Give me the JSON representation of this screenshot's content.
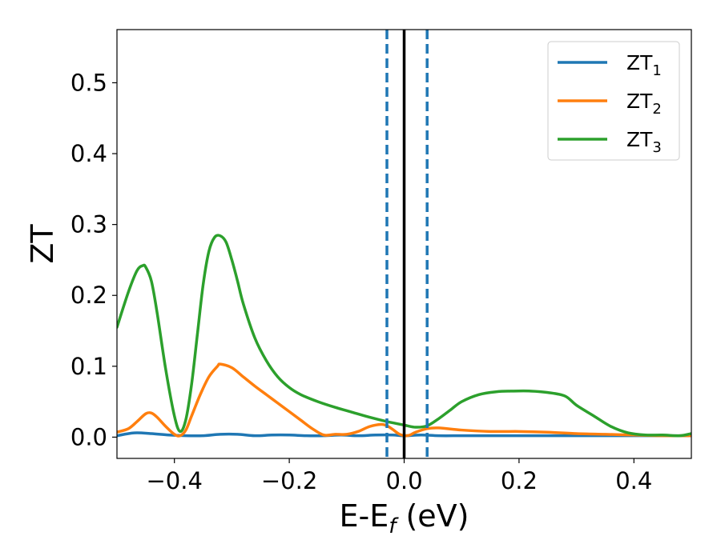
{
  "chart_data": {
    "type": "line",
    "xlabel": {
      "base": "E-E",
      "sub": "f",
      "suffix": " (eV)"
    },
    "ylabel": "ZT",
    "xlim": [
      -0.5,
      0.5
    ],
    "ylim": [
      -0.03,
      0.575
    ],
    "xticks": [
      -0.4,
      -0.2,
      0.0,
      0.2,
      0.4
    ],
    "xtick_labels": [
      "−0.4",
      "−0.2",
      "0.0",
      "0.2",
      "0.4"
    ],
    "yticks": [
      0.0,
      0.1,
      0.2,
      0.3,
      0.4,
      0.5
    ],
    "ytick_labels": [
      "0.0",
      "0.1",
      "0.2",
      "0.3",
      "0.4",
      "0.5"
    ],
    "grid": false,
    "legend_position": "top-right",
    "vlines": [
      {
        "x": 0.0,
        "style": "solid",
        "color": "#000000"
      },
      {
        "x": -0.03,
        "style": "dashed",
        "color": "#1f77b4"
      },
      {
        "x": 0.04,
        "style": "dashed",
        "color": "#1f77b4"
      }
    ],
    "series": [
      {
        "name": "ZT",
        "sub": "1",
        "color": "#1f77b4",
        "x": [
          -0.5,
          -0.47,
          -0.44,
          -0.41,
          -0.38,
          -0.35,
          -0.32,
          -0.29,
          -0.26,
          -0.23,
          -0.2,
          -0.17,
          -0.14,
          -0.11,
          -0.08,
          -0.05,
          -0.02,
          0.0,
          0.03,
          0.06,
          0.1,
          0.15,
          0.2,
          0.3,
          0.4,
          0.5
        ],
        "y": [
          0.002,
          0.006,
          0.005,
          0.003,
          0.002,
          0.002,
          0.004,
          0.004,
          0.002,
          0.003,
          0.003,
          0.002,
          0.002,
          0.003,
          0.002,
          0.003,
          0.003,
          0.002,
          0.003,
          0.002,
          0.002,
          0.002,
          0.002,
          0.002,
          0.002,
          0.002
        ]
      },
      {
        "name": "ZT",
        "sub": "2",
        "color": "#ff7f0e",
        "x": [
          -0.5,
          -0.48,
          -0.465,
          -0.45,
          -0.44,
          -0.43,
          -0.415,
          -0.4,
          -0.39,
          -0.38,
          -0.37,
          -0.355,
          -0.34,
          -0.325,
          -0.32,
          -0.3,
          -0.28,
          -0.26,
          -0.24,
          -0.22,
          -0.2,
          -0.18,
          -0.16,
          -0.14,
          -0.12,
          -0.1,
          -0.08,
          -0.06,
          -0.04,
          -0.03,
          -0.02,
          -0.01,
          0.0,
          0.01,
          0.02,
          0.04,
          0.06,
          0.1,
          0.15,
          0.2,
          0.25,
          0.3,
          0.35,
          0.4,
          0.45,
          0.5
        ],
        "y": [
          0.007,
          0.012,
          0.022,
          0.033,
          0.034,
          0.028,
          0.015,
          0.004,
          0.002,
          0.01,
          0.03,
          0.06,
          0.085,
          0.1,
          0.103,
          0.098,
          0.085,
          0.072,
          0.06,
          0.048,
          0.036,
          0.024,
          0.012,
          0.003,
          0.004,
          0.004,
          0.008,
          0.015,
          0.018,
          0.016,
          0.011,
          0.005,
          0.002,
          0.003,
          0.007,
          0.012,
          0.013,
          0.01,
          0.008,
          0.008,
          0.007,
          0.005,
          0.004,
          0.003,
          0.002,
          0.002
        ]
      },
      {
        "name": "ZT",
        "sub": "3",
        "color": "#2ca02c",
        "x": [
          -0.5,
          -0.48,
          -0.465,
          -0.455,
          -0.45,
          -0.44,
          -0.43,
          -0.415,
          -0.4,
          -0.39,
          -0.38,
          -0.37,
          -0.36,
          -0.35,
          -0.34,
          -0.33,
          -0.32,
          -0.31,
          -0.3,
          -0.29,
          -0.28,
          -0.26,
          -0.24,
          -0.22,
          -0.2,
          -0.18,
          -0.15,
          -0.12,
          -0.09,
          -0.06,
          -0.03,
          0.0,
          0.02,
          0.04,
          0.06,
          0.08,
          0.1,
          0.13,
          0.16,
          0.19,
          0.22,
          0.25,
          0.28,
          0.3,
          0.33,
          0.36,
          0.39,
          0.42,
          0.45,
          0.48,
          0.5
        ],
        "y": [
          0.155,
          0.205,
          0.235,
          0.242,
          0.24,
          0.22,
          0.175,
          0.095,
          0.03,
          0.008,
          0.025,
          0.075,
          0.145,
          0.215,
          0.262,
          0.282,
          0.284,
          0.275,
          0.25,
          0.22,
          0.188,
          0.14,
          0.108,
          0.085,
          0.07,
          0.06,
          0.05,
          0.042,
          0.035,
          0.028,
          0.022,
          0.017,
          0.014,
          0.016,
          0.026,
          0.038,
          0.05,
          0.06,
          0.064,
          0.065,
          0.065,
          0.063,
          0.058,
          0.045,
          0.03,
          0.015,
          0.006,
          0.003,
          0.003,
          0.002,
          0.005
        ]
      }
    ]
  }
}
